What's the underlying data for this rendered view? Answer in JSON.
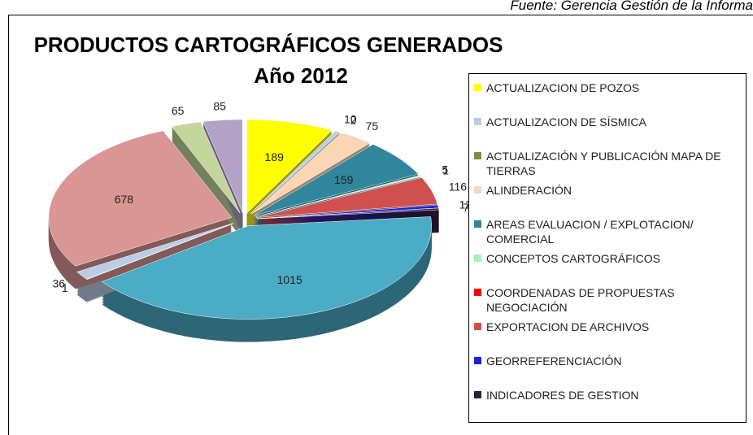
{
  "source": "Fuente: Gerencia Gestión de la Informa",
  "chart_data": {
    "type": "pie",
    "title": "PRODUCTOS CARTOGRÁFICOS GENERADOS",
    "subtitle": "Año  2012",
    "categories": [
      "ACTUALIZACION DE POZOS",
      "ACTUALIZACION DE SÍSMICA",
      "ACTUALIZACIÓN Y PUBLICACIÓN MAPA DE TIERRAS",
      "ALINDERACIÓN",
      "AREAS EVALUACION / EXPLOTACION/ COMERCIAL",
      "CONCEPTOS CARTOGRÁFICOS",
      "COORDENADAS DE PROPUESTAS NEGOCIACIÓN",
      "EXPORTACION DE ARCHIVOS",
      "GEORREFERENCIACIÓN",
      "INDICADORES DE GESTION",
      null,
      null,
      null,
      null,
      null,
      null
    ],
    "values": [
      189,
      10,
      2,
      75,
      159,
      5,
      1,
      116,
      12,
      7,
      1015,
      1,
      36,
      678,
      65,
      85
    ],
    "colors": [
      "#ffff00",
      "#b9cde5",
      "#77933c",
      "#fcd5b5",
      "#31859c",
      "#a6f0c0",
      "#ff0000",
      "#d05050",
      "#1f1fe0",
      "#2e1f3f",
      "#4bacc6",
      "#c0722c",
      "#b9cde5",
      "#d99694",
      "#c3d69b",
      "#b3a2c7"
    ]
  }
}
